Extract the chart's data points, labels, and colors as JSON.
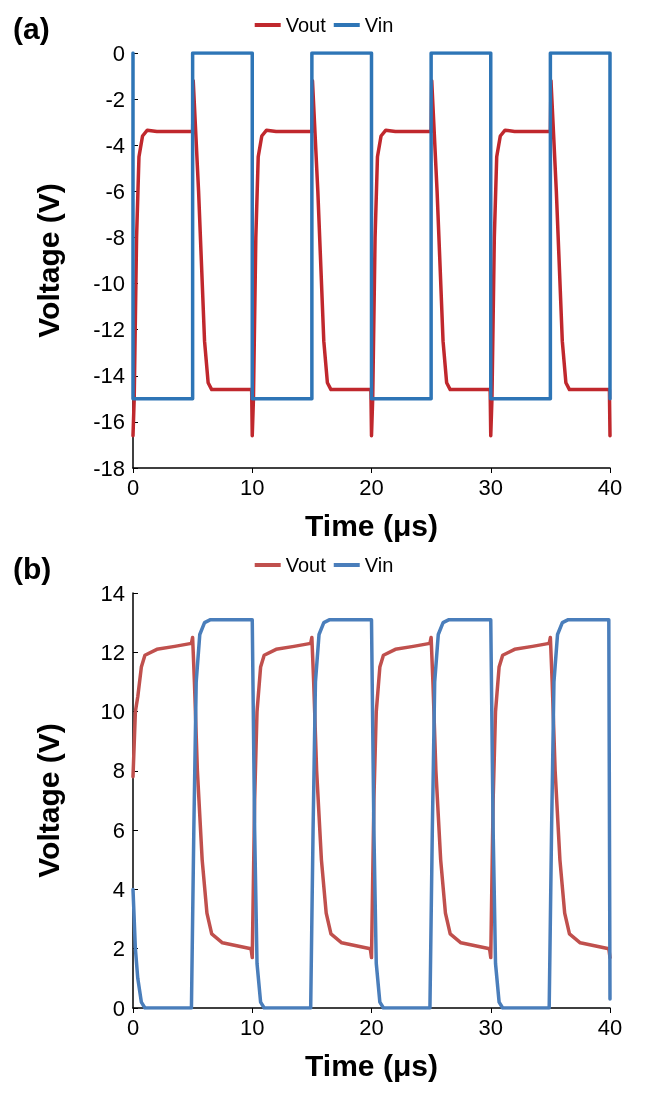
{
  "chart_data": [
    {
      "type": "line",
      "title": "(a)",
      "xlabel": "Time (μs)",
      "ylabel": "Voltage (V)",
      "xlim": [
        0,
        40
      ],
      "xticks": [
        0,
        10,
        20,
        30,
        40
      ],
      "ylim": [
        -18,
        0
      ],
      "yticks": [
        -18,
        -16,
        -14,
        -12,
        -10,
        -8,
        -6,
        -4,
        -2,
        0
      ],
      "grid": false,
      "legend": "top",
      "marker": "none",
      "line_style": "solid",
      "series": [
        {
          "name": "Vout",
          "color": "#c0282d",
          "x": [
            0,
            0.1,
            0.3,
            0.5,
            0.8,
            1.2,
            2,
            5,
            5.05,
            5.5,
            6,
            6.3,
            6.6,
            9.95,
            10,
            10.1,
            10.3,
            10.5,
            10.8,
            11.2,
            12,
            15,
            15.05,
            15.5,
            16,
            16.3,
            16.6,
            19.95,
            20,
            20.1,
            20.3,
            20.5,
            20.8,
            21.2,
            22,
            25,
            25.05,
            25.5,
            26,
            26.3,
            26.6,
            29.95,
            30,
            30.1,
            30.3,
            30.5,
            30.8,
            31.2,
            32,
            35,
            35.05,
            35.5,
            36,
            36.3,
            36.6,
            39.95,
            40
          ],
          "values": [
            -16.6,
            -15,
            -8,
            -4.5,
            -3.6,
            -3.35,
            -3.4,
            -3.4,
            -1.2,
            -6,
            -12.5,
            -14.3,
            -14.6,
            -14.6,
            -16.6,
            -15,
            -8,
            -4.5,
            -3.6,
            -3.35,
            -3.4,
            -3.4,
            -1.2,
            -6,
            -12.5,
            -14.3,
            -14.6,
            -14.6,
            -16.6,
            -15,
            -8,
            -4.5,
            -3.6,
            -3.35,
            -3.4,
            -3.4,
            -1.2,
            -6,
            -12.5,
            -14.3,
            -14.6,
            -14.6,
            -16.6,
            -15,
            -8,
            -4.5,
            -3.6,
            -3.35,
            -3.4,
            -3.4,
            -1.2,
            -6,
            -12.5,
            -14.3,
            -14.6,
            -14.6,
            -16.6
          ]
        },
        {
          "name": "Vin",
          "color": "#2e75b6",
          "x": [
            0,
            0,
            5,
            5,
            10,
            10,
            15,
            15,
            20,
            20,
            25,
            25,
            30,
            30,
            35,
            35,
            40,
            40
          ],
          "values": [
            0,
            -15,
            -15,
            0,
            0,
            -15,
            -15,
            0,
            0,
            -15,
            -15,
            0,
            0,
            -15,
            -15,
            0,
            0,
            -15
          ]
        }
      ]
    },
    {
      "type": "line",
      "title": "(b)",
      "xlabel": "Time (μs)",
      "ylabel": "Voltage (V)",
      "xlim": [
        0,
        40
      ],
      "xticks": [
        0,
        10,
        20,
        30,
        40
      ],
      "ylim": [
        0,
        14
      ],
      "yticks": [
        0,
        2,
        4,
        6,
        8,
        10,
        12,
        14
      ],
      "grid": false,
      "legend": "top",
      "marker": "none",
      "line_style": "solid",
      "series": [
        {
          "name": "Vout",
          "color": "#c0504d",
          "x": [
            0,
            0.2,
            0.4,
            0.7,
            1,
            2,
            3.5,
            4.9,
            5,
            5.15,
            5.4,
            5.8,
            6.2,
            6.6,
            7.5,
            9.9,
            10,
            10.2,
            10.4,
            10.7,
            11,
            12,
            13.5,
            14.9,
            15,
            15.15,
            15.4,
            15.8,
            16.2,
            16.6,
            17.5,
            19.9,
            20,
            20.2,
            20.4,
            20.7,
            21,
            22,
            23.5,
            24.9,
            25,
            25.15,
            25.4,
            25.8,
            26.2,
            26.6,
            27.5,
            29.9,
            30,
            30.2,
            30.4,
            30.7,
            31,
            32,
            33.5,
            34.9,
            35,
            35.15,
            35.4,
            35.8,
            36.2,
            36.6,
            37.5,
            39.9,
            40
          ],
          "values": [
            7.8,
            10,
            10.5,
            11.5,
            11.9,
            12.1,
            12.2,
            12.3,
            12.5,
            11,
            8,
            5,
            3.2,
            2.5,
            2.2,
            2,
            1.7,
            7,
            10,
            11.5,
            11.9,
            12.1,
            12.2,
            12.3,
            12.5,
            11,
            8,
            5,
            3.2,
            2.5,
            2.2,
            2,
            1.7,
            7,
            10,
            11.5,
            11.9,
            12.1,
            12.2,
            12.3,
            12.5,
            11,
            8,
            5,
            3.2,
            2.5,
            2.2,
            2,
            1.7,
            7,
            10,
            11.5,
            11.9,
            12.1,
            12.2,
            12.3,
            12.5,
            11,
            8,
            5,
            3.2,
            2.5,
            2.2,
            2,
            1.7
          ]
        },
        {
          "name": "Vin",
          "color": "#4a7ebb",
          "x": [
            0,
            0.2,
            0.4,
            0.7,
            1,
            4.9,
            5.1,
            5.3,
            5.6,
            6,
            6.5,
            9.9,
            10,
            10.2,
            10.4,
            10.7,
            11,
            14.9,
            15.1,
            15.3,
            15.6,
            16,
            16.5,
            19.9,
            20,
            20.2,
            20.4,
            20.7,
            21,
            24.9,
            25.1,
            25.3,
            25.6,
            26,
            26.5,
            29.9,
            30,
            30.2,
            30.4,
            30.7,
            31,
            34.9,
            35.1,
            35.3,
            35.6,
            36,
            36.5,
            39.9,
            40
          ],
          "values": [
            4,
            2,
            1,
            0.2,
            0,
            0,
            6,
            11,
            12.6,
            13,
            13.1,
            13.1,
            13.1,
            6,
            1.5,
            0.2,
            0,
            0,
            6,
            11,
            12.6,
            13,
            13.1,
            13.1,
            13.1,
            6,
            1.5,
            0.2,
            0,
            0,
            6,
            11,
            12.6,
            13,
            13.1,
            13.1,
            13.1,
            6,
            1.5,
            0.2,
            0,
            0,
            6,
            11,
            12.6,
            13,
            13.1,
            13.1,
            0.3
          ]
        }
      ]
    }
  ]
}
